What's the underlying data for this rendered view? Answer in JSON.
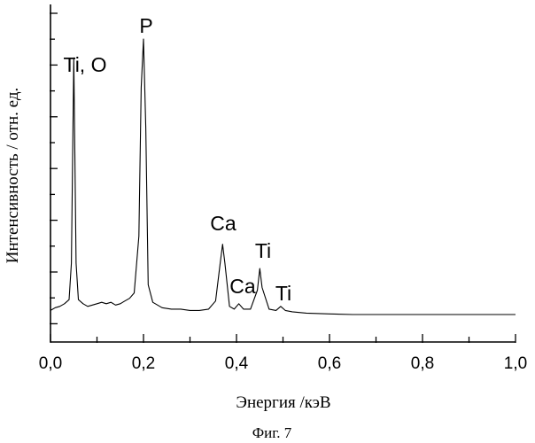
{
  "chart_data": {
    "type": "line",
    "title": "",
    "xlabel": "Энергия /кэВ",
    "ylabel": "Интенсивность / отн. ед.",
    "xlim": [
      0.0,
      1.0
    ],
    "ylim": [
      0,
      100
    ],
    "x_ticks": [
      "0,0",
      "0,2",
      "0,4",
      "0,6",
      "0,8",
      "1,0"
    ],
    "x_tick_values": [
      0.0,
      0.2,
      0.4,
      0.6,
      0.8,
      1.0
    ],
    "y_tick_labels_shown": false,
    "grid": false,
    "series": [
      {
        "x": [
          0.0,
          0.01,
          0.02,
          0.03,
          0.04,
          0.045,
          0.05,
          0.055,
          0.06,
          0.07,
          0.08,
          0.09,
          0.1,
          0.11,
          0.12,
          0.13,
          0.14,
          0.15,
          0.16,
          0.17,
          0.18,
          0.19,
          0.195,
          0.2,
          0.205,
          0.21,
          0.22,
          0.24,
          0.26,
          0.28,
          0.3,
          0.32,
          0.34,
          0.355,
          0.365,
          0.37,
          0.375,
          0.385,
          0.395,
          0.405,
          0.415,
          0.43,
          0.445,
          0.45,
          0.455,
          0.47,
          0.485,
          0.495,
          0.505,
          0.52,
          0.55,
          0.6,
          0.65,
          0.7,
          0.75,
          0.8,
          0.85,
          0.9,
          0.95,
          1.0
        ],
        "y": [
          2.5,
          3.5,
          4.0,
          5.0,
          6.5,
          20.0,
          96.0,
          20.0,
          6.5,
          5.0,
          4.0,
          4.5,
          5.0,
          5.5,
          5.0,
          5.5,
          4.5,
          5.0,
          6.0,
          7.0,
          9.0,
          30.0,
          85.0,
          103.0,
          70.0,
          12.0,
          5.5,
          3.5,
          3.0,
          3.0,
          2.5,
          2.5,
          3.0,
          6.0,
          20.0,
          27.0,
          20.0,
          4.0,
          3.0,
          5.0,
          3.0,
          3.0,
          10.0,
          18.0,
          11.0,
          3.0,
          2.5,
          4.0,
          2.5,
          2.0,
          1.5,
          1.2,
          1.0,
          1.0,
          1.0,
          1.0,
          1.0,
          1.0,
          1.0,
          1.0
        ]
      }
    ],
    "annotations": [
      {
        "text": "Ti, O",
        "x": 0.05
      },
      {
        "text": "P",
        "x": 0.2
      },
      {
        "text": "Ca",
        "x": 0.37
      },
      {
        "text": "Ca",
        "x": 0.405
      },
      {
        "text": "Ti",
        "x": 0.45
      },
      {
        "text": "Ti",
        "x": 0.495
      }
    ]
  },
  "caption": "Фиг. 7"
}
